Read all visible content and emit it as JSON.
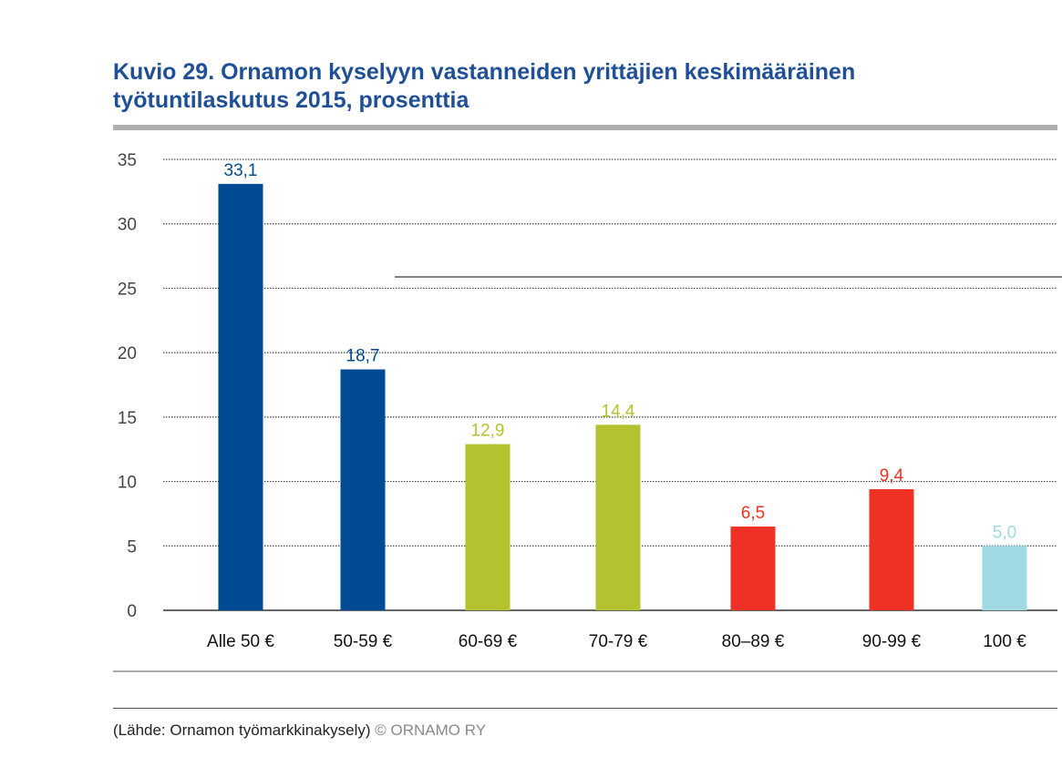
{
  "title": {
    "line1": "Kuvio 29. Ornamon kyselyyn vastanneiden yrittäjien keskimääräinen",
    "line2": "työtuntilaskutus 2015, prosenttia"
  },
  "chart_data": {
    "type": "bar",
    "title": "Kuvio 29. Ornamon kyselyyn vastanneiden yrittäjien keskimääräinen työtuntilaskutus 2015, prosenttia",
    "xlabel": "",
    "ylabel": "",
    "categories": [
      "Alle 50 €",
      "50-59 €",
      "60-69 €",
      "70-79 €",
      "80–89 €",
      "90-99 €",
      "100 €"
    ],
    "values": [
      33.1,
      18.7,
      12.9,
      14.4,
      6.5,
      9.4,
      5.0
    ],
    "value_labels": [
      "33,1",
      "18,7",
      "12,9",
      "14,4",
      "6,5",
      "9,4",
      "5,0"
    ],
    "colors": [
      "#004b93",
      "#004b93",
      "#b5c230",
      "#b5c230",
      "#ee3124",
      "#ee3124",
      "#9fd9e3"
    ],
    "ylim": [
      0,
      35
    ],
    "yticks": [
      0,
      5,
      10,
      15,
      20,
      25,
      30,
      35
    ],
    "grid": true,
    "legend": "none"
  },
  "source": {
    "text": "(Lähde: Ornamon työmarkkinakysely)",
    "copyright": "© ORNAMO RY"
  }
}
